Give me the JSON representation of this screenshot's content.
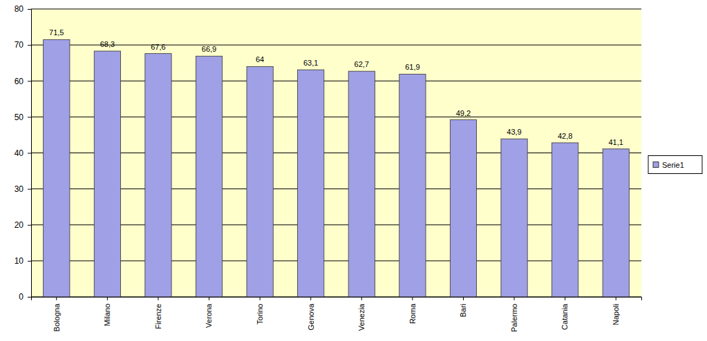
{
  "chart_data": {
    "type": "bar",
    "categories": [
      "Bologna",
      "Milano",
      "Firenze",
      "Verona",
      "Torino",
      "Genova",
      "Venezia",
      "Roma",
      "Bari",
      "Palermo",
      "Catania",
      "Napoli"
    ],
    "series": [
      {
        "name": "Serie1",
        "color": "#a0a0e6",
        "values": [
          71.5,
          68.3,
          67.6,
          66.9,
          64,
          63.1,
          62.7,
          61.9,
          49.2,
          43.9,
          42.8,
          41.1
        ],
        "value_labels": [
          "71,5",
          "68,3",
          "67,6",
          "66,9",
          "64",
          "63,1",
          "62,7",
          "61,9",
          "49,2",
          "43,9",
          "42,8",
          "41,1"
        ]
      }
    ],
    "ylim": [
      0,
      80
    ],
    "yticks": [
      0,
      10,
      20,
      30,
      40,
      50,
      60,
      70,
      80
    ],
    "grid": true,
    "legend": "right",
    "data_labels": true
  }
}
